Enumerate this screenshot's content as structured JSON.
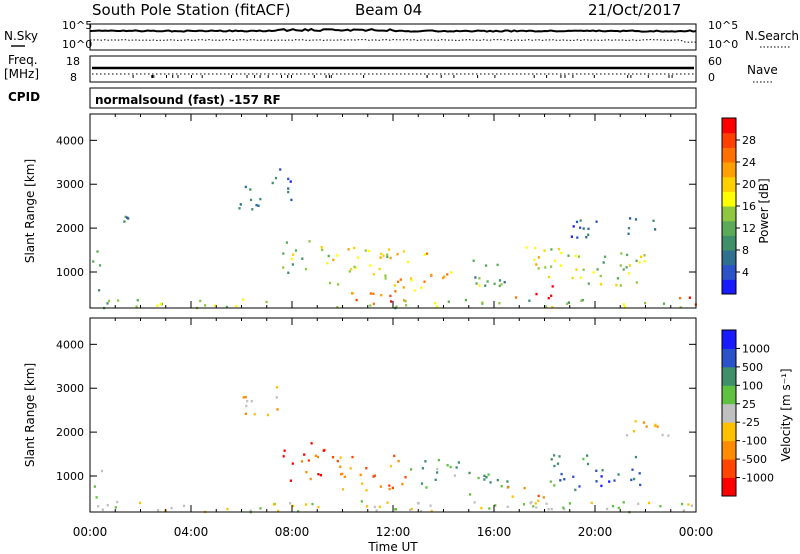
{
  "header": {
    "station": "South Pole Station (fitACF)",
    "beam": "Beam 04",
    "date": "21/Oct/2017"
  },
  "small_panels": {
    "nsky_label": "N.Sky",
    "nsky_ticks": [
      "10^5",
      "10^0"
    ],
    "nsearch_label": "N.Search",
    "nsearch_ticks": [
      "10^5",
      "10^0"
    ],
    "freq_label": "Freq.",
    "freq_unit": "[MHz]",
    "freq_ticks": [
      "18",
      "8"
    ],
    "nave_label": "Nave",
    "nave_ticks": [
      "60",
      "0"
    ],
    "cpid_label": "CPID",
    "cpid_text": "normalsound (fast) -157 RF"
  },
  "chart_data": [
    {
      "type": "heatmap",
      "name": "power-panel",
      "ylabel": "Slant Range [km]",
      "xlabel": "",
      "y_ticks": [
        "4000",
        "3000",
        "2000",
        "1000"
      ],
      "y_tick_values": [
        4000,
        3000,
        2000,
        1000
      ],
      "ylim": [
        180,
        4600
      ],
      "x_ticks": [
        "00:00",
        "04:00",
        "08:00",
        "12:00",
        "16:00",
        "20:00",
        "00:00"
      ],
      "x_tick_hours": [
        0,
        4,
        8,
        12,
        16,
        20,
        24
      ],
      "xlim": [
        0,
        24
      ],
      "colorbar": {
        "label": "Power [dB]",
        "ticks": [
          "28",
          "24",
          "20",
          "16",
          "12",
          "8",
          "4"
        ],
        "tick_values": [
          28,
          24,
          20,
          16,
          12,
          8,
          4
        ],
        "range": [
          0,
          32
        ],
        "colors": [
          "#1a1aff",
          "#2a52c9",
          "#2f6f8f",
          "#3f8f6a",
          "#5aaa58",
          "#8fc840",
          "#ffff00",
          "#ffd000",
          "#ffa000",
          "#ff7000",
          "#ff4000",
          "#ff0000"
        ]
      },
      "regions": [
        {
          "t": [
            0.0,
            0.4
          ],
          "r": [
            400,
            1500
          ],
          "v": 9
        },
        {
          "t": [
            1.0,
            2.0
          ],
          "r": [
            2100,
            2300
          ],
          "v": 8
        },
        {
          "t": [
            5.5,
            7.0
          ],
          "r": [
            2400,
            3000
          ],
          "v": 8
        },
        {
          "t": [
            7.0,
            8.0
          ],
          "r": [
            2600,
            3400
          ],
          "v": 7
        },
        {
          "t": [
            7.6,
            9.2
          ],
          "r": [
            900,
            1800
          ],
          "v": 14
        },
        {
          "t": [
            9.0,
            12.0
          ],
          "r": [
            700,
            1600
          ],
          "v": 18
        },
        {
          "t": [
            12.0,
            14.5
          ],
          "r": [
            600,
            1500
          ],
          "v": 22
        },
        {
          "t": [
            12.5,
            14.0
          ],
          "r": [
            800,
            1100
          ],
          "v": 28
        },
        {
          "t": [
            10.0,
            12.5
          ],
          "r": [
            250,
            600
          ],
          "v": 26
        },
        {
          "t": [
            14.5,
            16.5
          ],
          "r": [
            700,
            1300
          ],
          "v": 12
        },
        {
          "t": [
            16.5,
            18.5
          ],
          "r": [
            400,
            700
          ],
          "v": 28
        },
        {
          "t": [
            16.8,
            19.5
          ],
          "r": [
            800,
            1600
          ],
          "v": 17
        },
        {
          "t": [
            19.5,
            22.0
          ],
          "r": [
            700,
            1500
          ],
          "v": 15
        },
        {
          "t": [
            19.0,
            22.5
          ],
          "r": [
            1800,
            2300
          ],
          "v": 6
        },
        {
          "t": [
            23.3,
            24.0
          ],
          "r": [
            200,
            500
          ],
          "v": 30
        },
        {
          "t": [
            0.0,
            24.0
          ],
          "r": [
            180,
            400
          ],
          "v": 14
        }
      ]
    },
    {
      "type": "heatmap",
      "name": "velocity-panel",
      "ylabel": "Slant Range [km]",
      "xlabel": "Time UT",
      "y_ticks": [
        "4000",
        "3000",
        "2000",
        "1000"
      ],
      "y_tick_values": [
        4000,
        3000,
        2000,
        1000
      ],
      "ylim": [
        180,
        4600
      ],
      "x_ticks": [
        "00:00",
        "04:00",
        "08:00",
        "12:00",
        "16:00",
        "20:00",
        "00:00"
      ],
      "x_tick_hours": [
        0,
        4,
        8,
        12,
        16,
        20,
        24
      ],
      "xlim": [
        0,
        24
      ],
      "colorbar": {
        "label": "Velocity [m s⁻¹]",
        "ticks": [
          "1000",
          "500",
          "100",
          "25",
          "-25",
          "-100",
          "-500",
          "-1000"
        ],
        "colors": [
          "#ff0000",
          "#ff4500",
          "#ff8c00",
          "#ffc000",
          "#c0c0c0",
          "#60c040",
          "#3f8f6a",
          "#2a52c9",
          "#1a1aff"
        ]
      },
      "regions": [
        {
          "t": [
            0.0,
            0.5
          ],
          "r": [
            400,
            1200
          ],
          "v": 5
        },
        {
          "t": [
            6.0,
            7.5
          ],
          "r": [
            2400,
            3200
          ],
          "v": 3
        },
        {
          "t": [
            7.6,
            9.4
          ],
          "r": [
            900,
            1800
          ],
          "v": 1
        },
        {
          "t": [
            9.4,
            12.5
          ],
          "r": [
            700,
            1500
          ],
          "v": 2
        },
        {
          "t": [
            12.5,
            15.0
          ],
          "r": [
            700,
            1400
          ],
          "v": 5
        },
        {
          "t": [
            15.0,
            17.0
          ],
          "r": [
            600,
            1100
          ],
          "v": 6
        },
        {
          "t": [
            16.5,
            18.0
          ],
          "r": [
            400,
            800
          ],
          "v": 2
        },
        {
          "t": [
            18.0,
            20.0
          ],
          "r": [
            700,
            1500
          ],
          "v": 6
        },
        {
          "t": [
            20.0,
            22.0
          ],
          "r": [
            800,
            1600
          ],
          "v": 7
        },
        {
          "t": [
            21.0,
            23.0
          ],
          "r": [
            1800,
            2300
          ],
          "v": 3
        },
        {
          "t": [
            0.0,
            24.0
          ],
          "r": [
            180,
            450
          ],
          "v": 4
        }
      ]
    }
  ]
}
